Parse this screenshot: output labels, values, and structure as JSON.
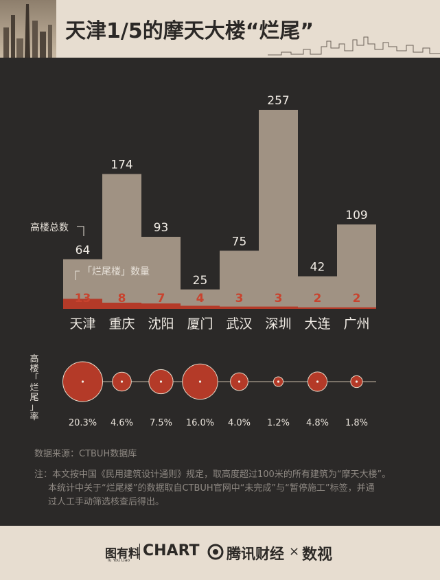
{
  "header": {
    "title": "天津1/5的摩天大楼“烂尾”"
  },
  "chart_data": {
    "type": "bar",
    "categories": [
      "天津",
      "重庆",
      "沈阳",
      "厦门",
      "武汉",
      "深圳",
      "大连",
      "广州"
    ],
    "series": [
      {
        "name": "高楼总数",
        "values": [
          64,
          174,
          93,
          25,
          75,
          257,
          42,
          109
        ]
      },
      {
        "name": "「烂尾楼」数量",
        "values": [
          13,
          8,
          7,
          4,
          3,
          3,
          2,
          2
        ]
      }
    ],
    "rate_label": "高楼「烂尾」率",
    "rate_label_chars": [
      "高",
      "楼",
      "「",
      "烂",
      "尾",
      "」",
      "率"
    ],
    "rates": [
      20.3,
      4.6,
      7.5,
      16.0,
      4.0,
      1.2,
      4.8,
      1.8
    ],
    "rate_labels": [
      "20.3%",
      "4.6%",
      "7.5%",
      "16.0%",
      "4.0%",
      "1.2%",
      "4.8%",
      "1.8%"
    ],
    "ylim": [
      0,
      257
    ],
    "colors": {
      "total": "#a09283",
      "unfinished": "#b43a28",
      "rate_circle": "#b43a28",
      "count_text": "#c8432e",
      "value_text": "#f2ede6"
    }
  },
  "notes": {
    "source": "数据来源：CTBUH数据库",
    "line1": "注：本文按中国《民用建筑设计通则》规定，取高度超过100米的所有建筑为“摩天大楼”。",
    "line2": "本统计中关于“烂尾楼”的数据取自CTBUH官网中“未完成”与“暂停施工”标签，并通",
    "line3": "过人工手动筛选核查后得出。"
  },
  "logos": {
    "tuyouliao": "图有料",
    "tuyouliao_sub": "Tu You Liao",
    "chart": "CHART",
    "tencent": "腾讯财经",
    "times": "×",
    "shushi": "数视"
  }
}
